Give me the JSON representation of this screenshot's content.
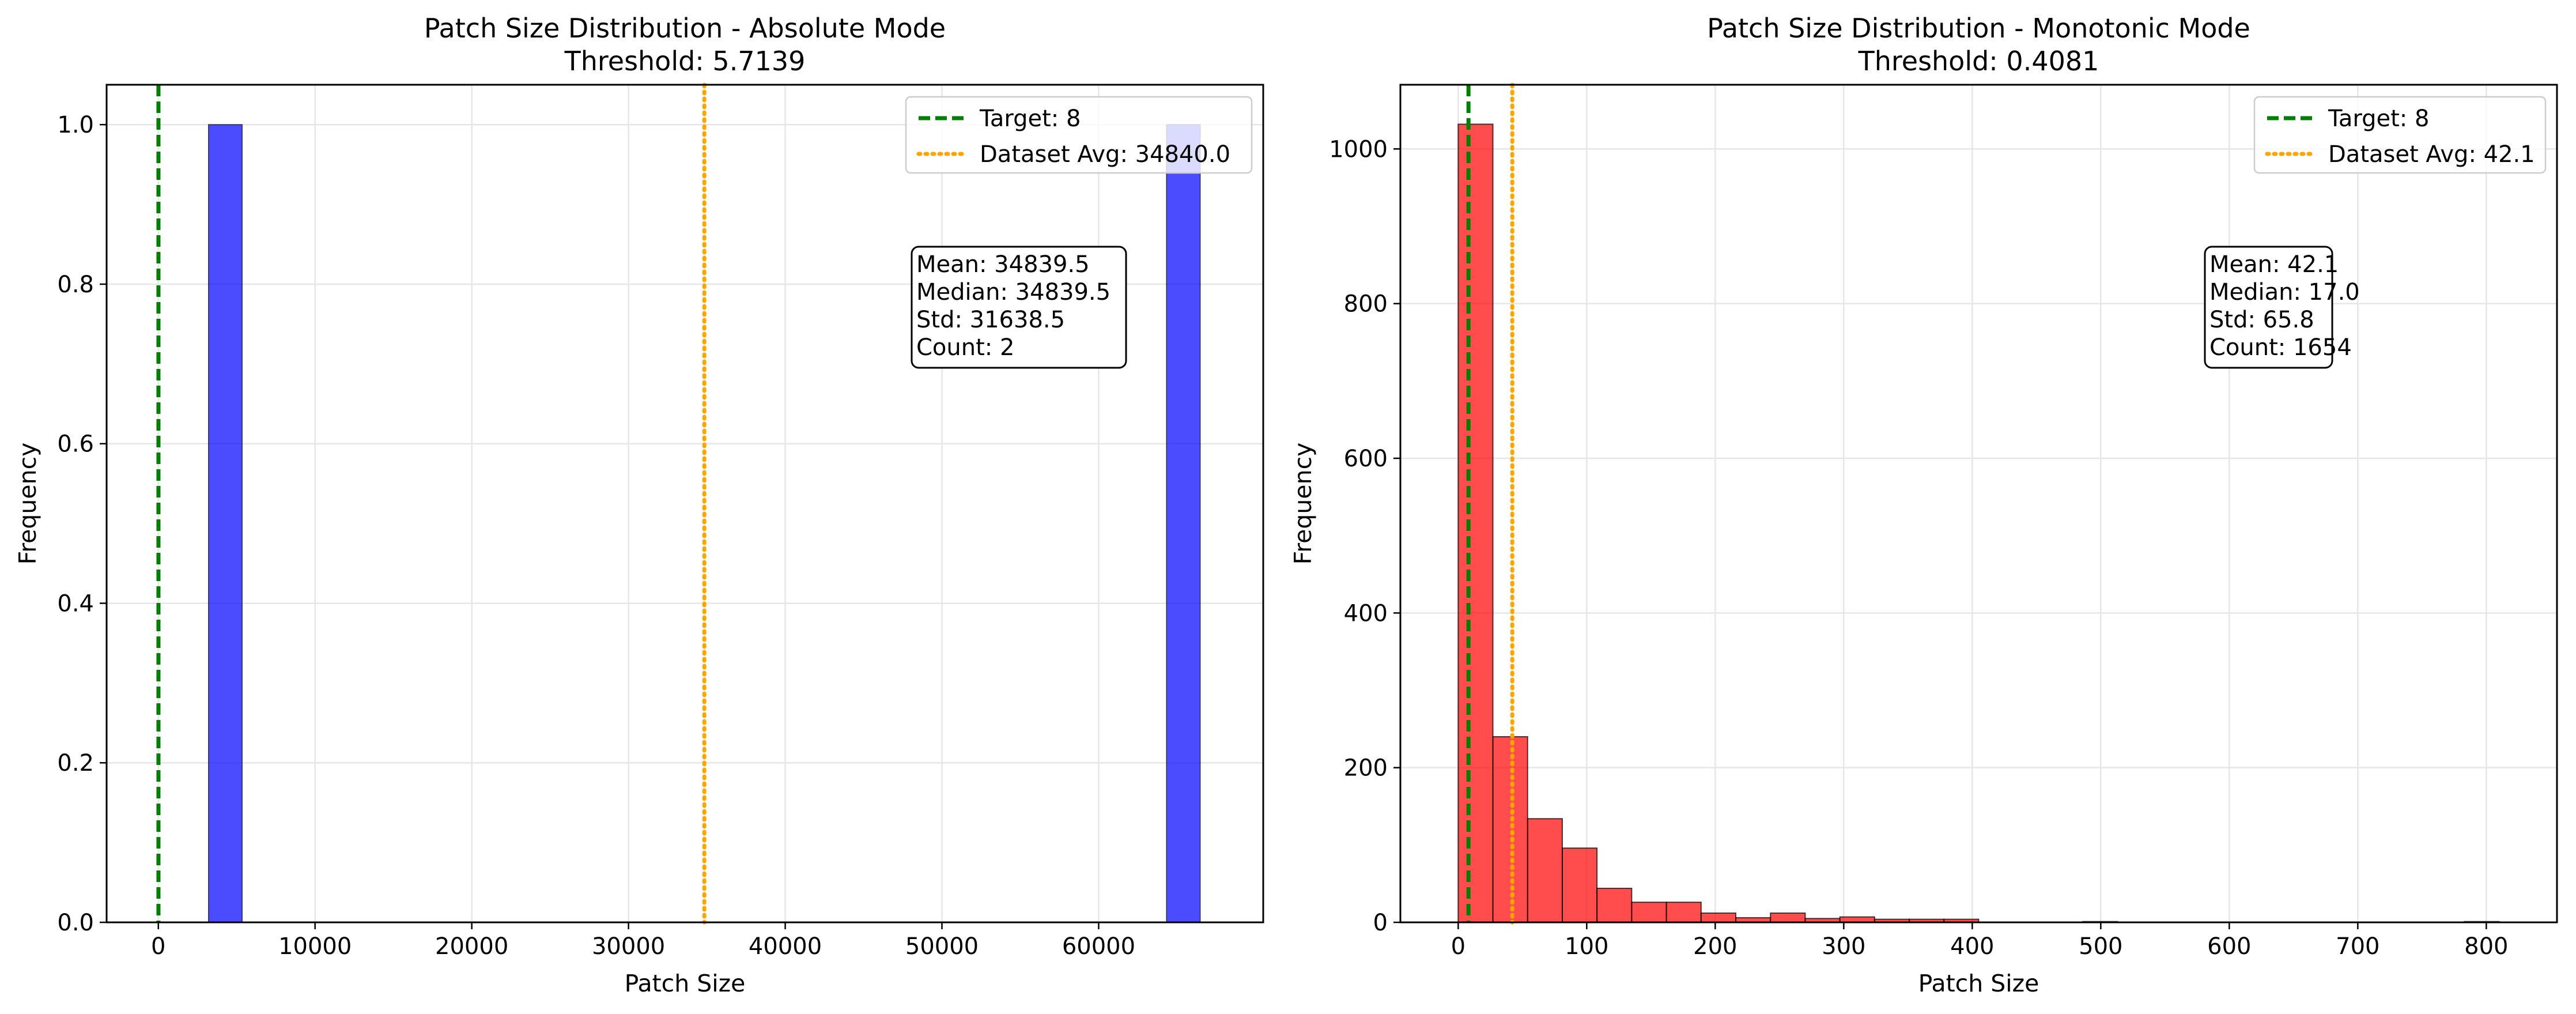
{
  "chart_data": [
    {
      "type": "bar",
      "title": "Patch Size Distribution - Absolute Mode",
      "subtitle": "Threshold: 5.7139",
      "xlabel": "Patch Size",
      "ylabel": "Frequency",
      "xlim": [
        -3300,
        70500
      ],
      "ylim": [
        0,
        1.05
      ],
      "xticks": [
        0,
        10000,
        20000,
        30000,
        40000,
        50000,
        60000
      ],
      "xtick_labels": [
        "0",
        "10000",
        "20000",
        "30000",
        "40000",
        "50000",
        "60000"
      ],
      "yticks": [
        0.0,
        0.2,
        0.4,
        0.6,
        0.8,
        1.0
      ],
      "ytick_labels": [
        "0.0",
        "0.2",
        "0.4",
        "0.6",
        "0.8",
        "1.0"
      ],
      "grid": true,
      "bar_color": "#0000ff",
      "bins": [
        {
          "x0": 3200,
          "x1": 5350,
          "count": 1
        },
        {
          "x0": 64330,
          "x1": 66480,
          "count": 1
        }
      ],
      "vlines": [
        {
          "label": "Target: 8",
          "x": 8,
          "style": "dashed",
          "color": "#008000"
        },
        {
          "label": "Dataset Avg: 34840.0",
          "x": 34840.0,
          "style": "dotted",
          "color": "#ffa500"
        }
      ],
      "legend_position": "top-right",
      "stats": [
        "Mean: 34839.5",
        "Median: 34839.5",
        "Std: 31638.5",
        "Count: 2"
      ]
    },
    {
      "type": "bar",
      "title": "Patch Size Distribution - Monotonic Mode",
      "subtitle": "Threshold: 0.4081",
      "xlabel": "Patch Size",
      "ylabel": "Frequency",
      "xlim": [
        -45,
        855
      ],
      "ylim": [
        0,
        1083
      ],
      "xticks": [
        0,
        100,
        200,
        300,
        400,
        500,
        600,
        700,
        800
      ],
      "xtick_labels": [
        "0",
        "100",
        "200",
        "300",
        "400",
        "500",
        "600",
        "700",
        "800"
      ],
      "yticks": [
        0,
        200,
        400,
        600,
        800,
        1000
      ],
      "ytick_labels": [
        "0",
        "200",
        "400",
        "600",
        "800",
        "1000"
      ],
      "grid": true,
      "bar_color": "#ff0000",
      "bin_start": 0,
      "bin_width": 27,
      "counts": [
        1032,
        240,
        134,
        96,
        44,
        26,
        26,
        12,
        6,
        12,
        5,
        7,
        4,
        4,
        4,
        0,
        0,
        0,
        1,
        0,
        0,
        0,
        0,
        0,
        0,
        0,
        0,
        0,
        0,
        1
      ],
      "vlines": [
        {
          "label": "Target: 8",
          "x": 8,
          "style": "dashed",
          "color": "#008000"
        },
        {
          "label": "Dataset Avg: 42.1",
          "x": 42.1,
          "style": "dotted",
          "color": "#ffa500"
        }
      ],
      "legend_position": "top-right",
      "stats": [
        "Mean: 42.1",
        "Median: 17.0",
        "Std: 65.8",
        "Count: 1654"
      ]
    }
  ]
}
